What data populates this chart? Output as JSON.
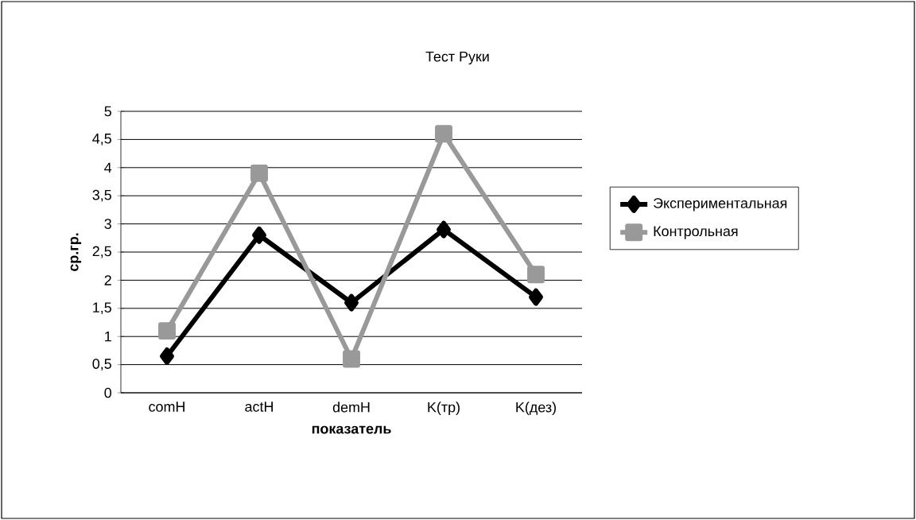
{
  "chart_data": {
    "type": "line",
    "title": "Тест Руки",
    "xlabel": "показатель",
    "ylabel": "ср.гр.",
    "categories": [
      "comH",
      "actH",
      "demH",
      "K(тр)",
      "K(дез)"
    ],
    "series": [
      {
        "name": "Экспериментальная",
        "color": "#000000",
        "marker": "diamond",
        "values": [
          0.65,
          2.8,
          1.6,
          2.9,
          1.7
        ]
      },
      {
        "name": "Контрольная",
        "color": "#999999",
        "marker": "square",
        "values": [
          1.1,
          3.9,
          0.6,
          4.6,
          2.1
        ]
      }
    ],
    "ylim": [
      0,
      5
    ],
    "yticks": [
      0,
      {
        "value": 0.5,
        "label": "0,5"
      },
      1,
      {
        "value": 1.5,
        "label": "1,5"
      },
      2,
      {
        "value": 2.5,
        "label": "2,5"
      },
      3,
      {
        "value": 3.5,
        "label": "3,5"
      },
      4,
      {
        "value": 4.5,
        "label": "4,5"
      },
      5
    ],
    "grid": "y",
    "legend": "right",
    "line_style": "solid"
  }
}
